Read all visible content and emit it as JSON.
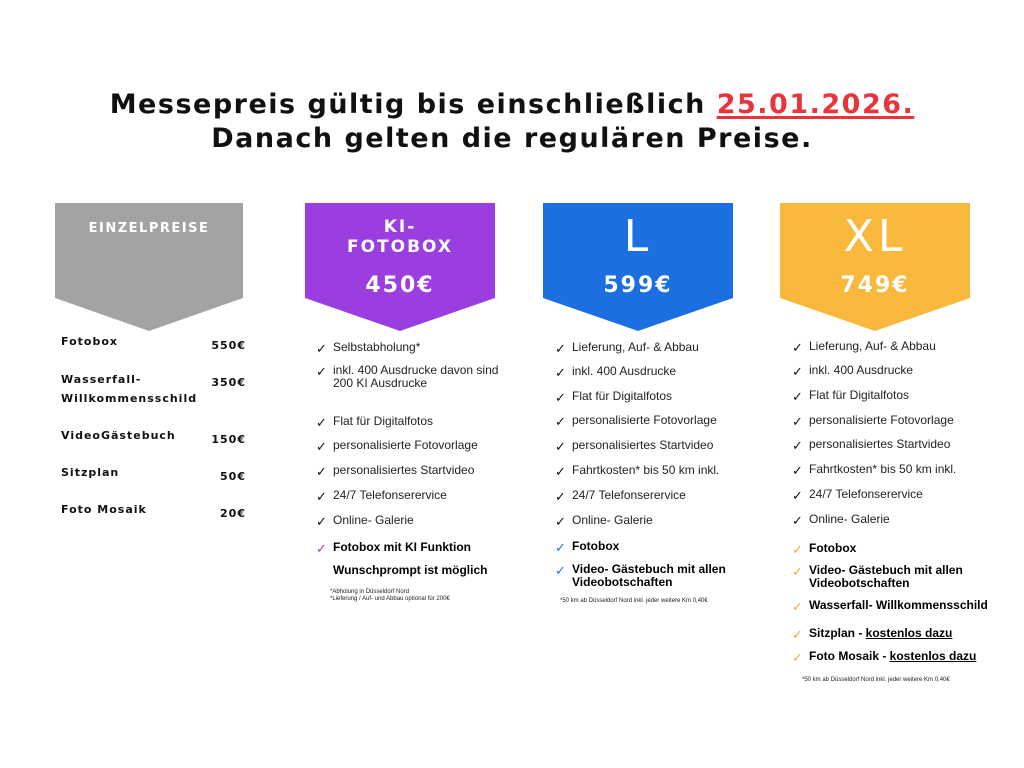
{
  "headline": {
    "line1_text": "Messepreis gültig bis einschließlich ",
    "line1_date": "25.01.2026.",
    "line2": "Danach gelten die regulären Preise."
  },
  "einzelpreise": {
    "title": "EINZELPREISE",
    "color": "#a3a3a3",
    "items": [
      {
        "name": "Fotobox",
        "price": "550€"
      },
      {
        "name": "Wasserfall-\nWillkommensschild",
        "price": "350€"
      },
      {
        "name": "VideoGästebuch",
        "price": "150€"
      },
      {
        "name": "Sitzplan",
        "price": "50€"
      },
      {
        "name": "Foto Mosaik",
        "price": "20€"
      }
    ]
  },
  "packages": [
    {
      "name": "KI-\nFOTOBOX",
      "price": "450€",
      "color": "#9b3ee0",
      "features": [
        "Selbstabholung*",
        "inkl. 400 Ausdrucke davon sind 200 KI Ausdrucke",
        "Flat für Digitalfotos",
        "personalisierte Fotovorlage",
        "personalisiertes Startvideo",
        "24/7 Telefonserervice",
        "Online- Galerie"
      ],
      "extras": [
        "Fotobox mit KI Funktion",
        "Wunschprompt ist möglich"
      ],
      "notes": [
        "*Abholung in Düsseldorf Nord",
        "*Lieferung / Auf- und Abbau optional für 200€"
      ]
    },
    {
      "name": "L",
      "price": "599€",
      "color": "#1b6fe0",
      "features": [
        "Lieferung, Auf- & Abbau",
        "inkl. 400 Ausdrucke",
        "Flat für Digitalfotos",
        "personalisierte Fotovorlage",
        "personalisiertes Startvideo",
        "Fahrtkosten* bis 50 km inkl.",
        "24/7 Telefonserervice",
        "Online- Galerie"
      ],
      "extras": [
        "Fotobox",
        "Video- Gästebuch mit allen Videobotschaften"
      ],
      "notes": [
        "*50 km ab Düsseldorf Nord inkl. jeder weitere Km 0,40€"
      ]
    },
    {
      "name": "XL",
      "price": "749€",
      "color": "#f8b83c",
      "features": [
        "Lieferung, Auf- & Abbau",
        "inkl. 400 Ausdrucke",
        "Flat für Digitalfotos",
        "personalisierte Fotovorlage",
        "personalisiertes Startvideo",
        "Fahrtkosten* bis 50 km inkl.",
        "24/7 Telefonserervice",
        "Online- Galerie"
      ],
      "extras": [
        "Fotobox",
        "Video- Gästebuch mit allen Videobotschaften",
        "Wasserfall- Willkommensschild"
      ],
      "free_extras": [
        {
          "name": "Sitzplan - ",
          "free": "kostenlos dazu"
        },
        {
          "name": "Foto Mosaik - ",
          "free": "kostenlos dazu"
        }
      ],
      "notes": [
        "*50 km ab Düsseldorf Nord inkl. jeder weitere Km 0,40€"
      ]
    }
  ]
}
